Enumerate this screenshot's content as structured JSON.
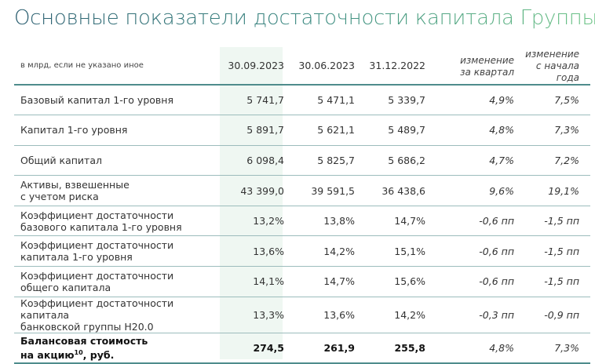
{
  "title": "Основные показатели достаточности капитала Группы",
  "header": {
    "unit": "в млрд, если не указано иное",
    "dates": [
      "30.09.2023",
      "30.06.2023",
      "31.12.2022"
    ],
    "change_q": [
      "изменение",
      "за квартал"
    ],
    "change_y": [
      "изменение",
      "с начала года"
    ]
  },
  "rows": [
    {
      "label": [
        "Базовый капитал 1-го уровня"
      ],
      "v": [
        "5 741,7",
        "5 471,1",
        "5 339,7"
      ],
      "cq": "4,9%",
      "cy": "7,5%"
    },
    {
      "label": [
        "Капитал 1-го уровня"
      ],
      "v": [
        "5 891,7",
        "5 621,1",
        "5 489,7"
      ],
      "cq": "4,8%",
      "cy": "7,3%"
    },
    {
      "label": [
        "Общий капитал"
      ],
      "v": [
        "6 098,4",
        "5 825,7",
        "5 686,2"
      ],
      "cq": "4,7%",
      "cy": "7,2%"
    },
    {
      "label": [
        "Активы, взвешенные",
        "с учетом риска"
      ],
      "v": [
        "43 399,0",
        "39 591,5",
        "36 438,6"
      ],
      "cq": "9,6%",
      "cy": "19,1%"
    },
    {
      "label": [
        "Коэффициент достаточности",
        "базового капитала 1-го уровня"
      ],
      "v": [
        "13,2%",
        "13,8%",
        "14,7%"
      ],
      "cq": "-0,6 пп",
      "cy": "-1,5 пп"
    },
    {
      "label": [
        "Коэффициент достаточности",
        "капитала 1-го уровня"
      ],
      "v": [
        "13,6%",
        "14,2%",
        "15,1%"
      ],
      "cq": "-0,6 пп",
      "cy": "-1,5 пп"
    },
    {
      "label": [
        "Коэффициент достаточности",
        "общего капитала"
      ],
      "v": [
        "14,1%",
        "14,7%",
        "15,6%"
      ],
      "cq": "-0,6 пп",
      "cy": "-1,5 пп"
    },
    {
      "label": [
        "Коэффициент достаточности капитала",
        "банковской группы Н20.0"
      ],
      "v": [
        "13,3%",
        "13,6%",
        "14,2%"
      ],
      "cq": "-0,3 пп",
      "cy": "-0,9 пп"
    }
  ],
  "last": {
    "label1": "Балансовая стоимость",
    "label2a": "на акцию",
    "sup": "10",
    "label2b": ", руб.",
    "v": [
      "274,5",
      "261,9",
      "255,8"
    ],
    "cq": "4,8%",
    "cy": "7,3%"
  }
}
